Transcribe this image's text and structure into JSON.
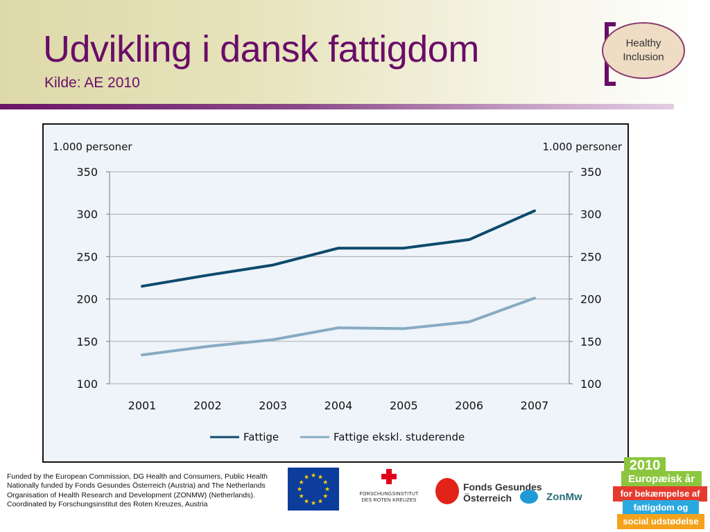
{
  "slide": {
    "title": "Udvikling i dansk fattigdom",
    "subtitle": "Kilde: AE 2010",
    "accent_color": "#6a0c68"
  },
  "logo_healthy_inclusion": {
    "line1": "Healthy",
    "line2": "Inclusion"
  },
  "chart_data": {
    "type": "line",
    "title": "",
    "ylabel_left": "1.000 personer",
    "ylabel_right": "1.000 personer",
    "xlabel": "",
    "categories": [
      "2001",
      "2002",
      "2003",
      "2004",
      "2005",
      "2006",
      "2007"
    ],
    "ylim": [
      100,
      350
    ],
    "yticks": [
      100,
      150,
      200,
      250,
      300,
      350
    ],
    "grid": "horizontal",
    "legend_position": "bottom",
    "series": [
      {
        "name": "Fattige",
        "color": "#0d4a6b",
        "values": [
          215,
          228,
          240,
          260,
          260,
          270,
          304
        ]
      },
      {
        "name": "Fattige ekskl. studerende",
        "color": "#86abc2",
        "values": [
          134,
          144,
          152,
          166,
          165,
          173,
          201
        ]
      }
    ]
  },
  "footer": {
    "funding_lines": [
      "Funded by the European Commission, DG Health and Consumers, Public Health",
      "Nationally funded by Fonds Gesundes Österreich (Austria) and The Netherlands Organisation of Health Research and Development (ZONMW) (Netherlands).",
      "Coordinated by Forschungsinstitut des Roten Kreuzes, Austria"
    ],
    "logos": {
      "fri_line1": "FORSCHUNGSINSTITUT",
      "fri_line2": "DES ROTEN KREUZES",
      "fgo_line1": "Fonds Gesundes",
      "fgo_line2": "Österreich",
      "zonmw": "ZonMw",
      "y2010_year": "2010",
      "y2010_line1": "Europæisk år",
      "y2010_line2": "for bekæmpelse af",
      "y2010_line3": "fattigdom og",
      "y2010_line4": "social udstødelse"
    }
  }
}
